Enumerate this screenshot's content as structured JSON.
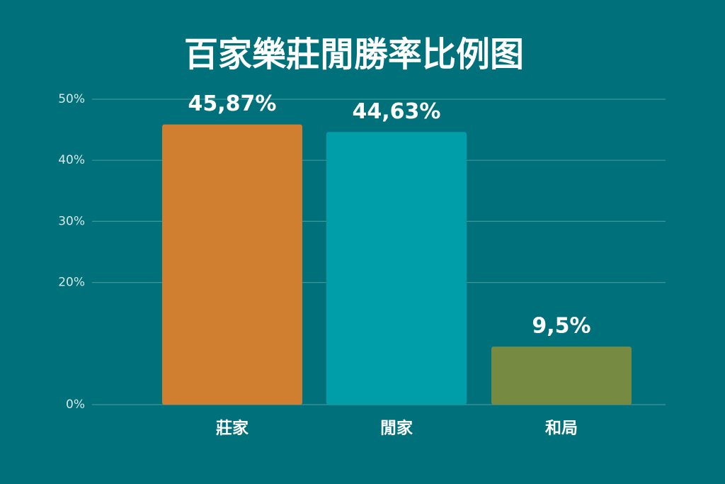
{
  "chart_data": {
    "type": "bar",
    "title": "百家樂莊閒勝率比例图",
    "categories": [
      "莊家",
      "閒家",
      "和局"
    ],
    "values": [
      45.87,
      44.63,
      9.5
    ],
    "value_labels": [
      "45,87%",
      "44,63%",
      "9,5%"
    ],
    "colors": [
      "#d07f30",
      "#009ea8",
      "#768b41"
    ],
    "ylim": [
      0,
      50
    ],
    "yticks": [
      {
        "value": 0,
        "label": "0%"
      },
      {
        "value": 20,
        "label": "20%"
      },
      {
        "value": 30,
        "label": "30%"
      },
      {
        "value": 40,
        "label": "40%"
      },
      {
        "value": 50,
        "label": "50%"
      }
    ],
    "grid": true
  }
}
